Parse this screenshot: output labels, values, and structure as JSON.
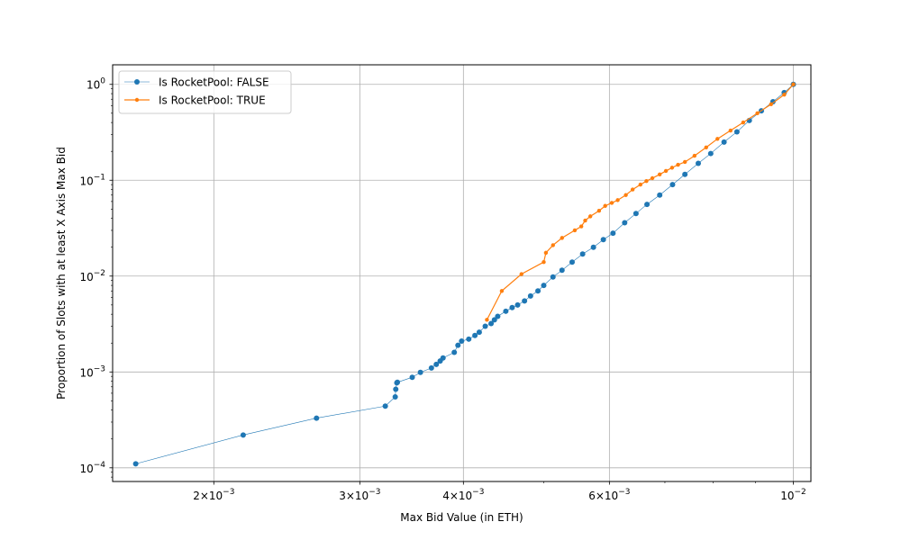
{
  "chart_data": {
    "type": "line",
    "title": "",
    "xlabel": "Max Bid Value (in ETH)",
    "ylabel": "Proportion of Slots with at least X Axis Max Bid",
    "xscale": "log",
    "yscale": "log",
    "xlim": [
      0.00151,
      0.0105
    ],
    "ylim": [
      7.2e-05,
      1.6
    ],
    "grid": true,
    "legend_position": "upper-left",
    "x_ticks": [
      {
        "value": 0.002,
        "mantissa": "2",
        "exponent": "−3"
      },
      {
        "value": 0.003,
        "mantissa": "3",
        "exponent": "−3"
      },
      {
        "value": 0.004,
        "mantissa": "4",
        "exponent": "−3"
      },
      {
        "value": 0.006,
        "mantissa": "6",
        "exponent": "−3"
      },
      {
        "value": 0.01,
        "mantissa": "",
        "exponent": "−2"
      }
    ],
    "y_ticks": [
      {
        "value": 1,
        "exponent": "0"
      },
      {
        "value": 0.1,
        "exponent": "−1"
      },
      {
        "value": 0.01,
        "exponent": "−2"
      },
      {
        "value": 0.001,
        "exponent": "−3"
      },
      {
        "value": 0.0001,
        "exponent": "−4"
      }
    ],
    "series": [
      {
        "name": "Is RocketPool: FALSE",
        "color": "#1f77b4",
        "marker_size": 3,
        "line_width": 0.6,
        "x": [
          0.00161,
          0.00217,
          0.00266,
          0.00322,
          0.00331,
          0.003315,
          0.003325,
          0.00333,
          0.00347,
          0.00355,
          0.00366,
          0.00371,
          0.00375,
          0.00378,
          0.0039,
          0.00394,
          0.00398,
          0.00406,
          0.00413,
          0.00418,
          0.00425,
          0.00432,
          0.00436,
          0.0044,
          0.0045,
          0.00458,
          0.00465,
          0.00474,
          0.00482,
          0.00492,
          0.005,
          0.00513,
          0.00526,
          0.00541,
          0.00557,
          0.00574,
          0.0059,
          0.00606,
          0.00626,
          0.00646,
          0.00666,
          0.0069,
          0.00715,
          0.0074,
          0.00768,
          0.00795,
          0.00825,
          0.00855,
          0.00885,
          0.00915,
          0.00945,
          0.00975,
          0.01
        ],
        "y": [
          0.00011,
          0.00022,
          0.00033,
          0.00044,
          0.00055,
          0.00066,
          0.00077,
          0.00078,
          0.00088,
          0.00099,
          0.0011,
          0.0012,
          0.0013,
          0.0014,
          0.0016,
          0.0019,
          0.0021,
          0.0022,
          0.0024,
          0.0026,
          0.003,
          0.0032,
          0.0035,
          0.0038,
          0.0043,
          0.0047,
          0.005,
          0.0055,
          0.0062,
          0.007,
          0.008,
          0.0098,
          0.0115,
          0.014,
          0.017,
          0.02,
          0.024,
          0.028,
          0.036,
          0.045,
          0.056,
          0.07,
          0.09,
          0.115,
          0.15,
          0.19,
          0.25,
          0.32,
          0.42,
          0.53,
          0.66,
          0.82,
          1.0
        ]
      },
      {
        "name": "Is RocketPool: TRUE",
        "color": "#ff7f0e",
        "marker_size": 2.2,
        "line_width": 1.2,
        "x": [
          0.00427,
          0.00445,
          0.0047,
          0.005,
          0.00503,
          0.00513,
          0.00526,
          0.00545,
          0.00555,
          0.00561,
          0.00569,
          0.00583,
          0.00593,
          0.00604,
          0.00614,
          0.00628,
          0.0064,
          0.00654,
          0.00665,
          0.00676,
          0.0069,
          0.00702,
          0.00714,
          0.00726,
          0.0074,
          0.0076,
          0.00785,
          0.0081,
          0.0084,
          0.0087,
          0.00905,
          0.0094,
          0.00975,
          0.01
        ],
        "y": [
          0.0035,
          0.007,
          0.0105,
          0.014,
          0.0175,
          0.021,
          0.025,
          0.03,
          0.033,
          0.038,
          0.042,
          0.048,
          0.054,
          0.058,
          0.062,
          0.07,
          0.08,
          0.09,
          0.098,
          0.105,
          0.115,
          0.125,
          0.135,
          0.145,
          0.155,
          0.18,
          0.22,
          0.27,
          0.33,
          0.4,
          0.5,
          0.62,
          0.78,
          1.0
        ]
      }
    ]
  }
}
